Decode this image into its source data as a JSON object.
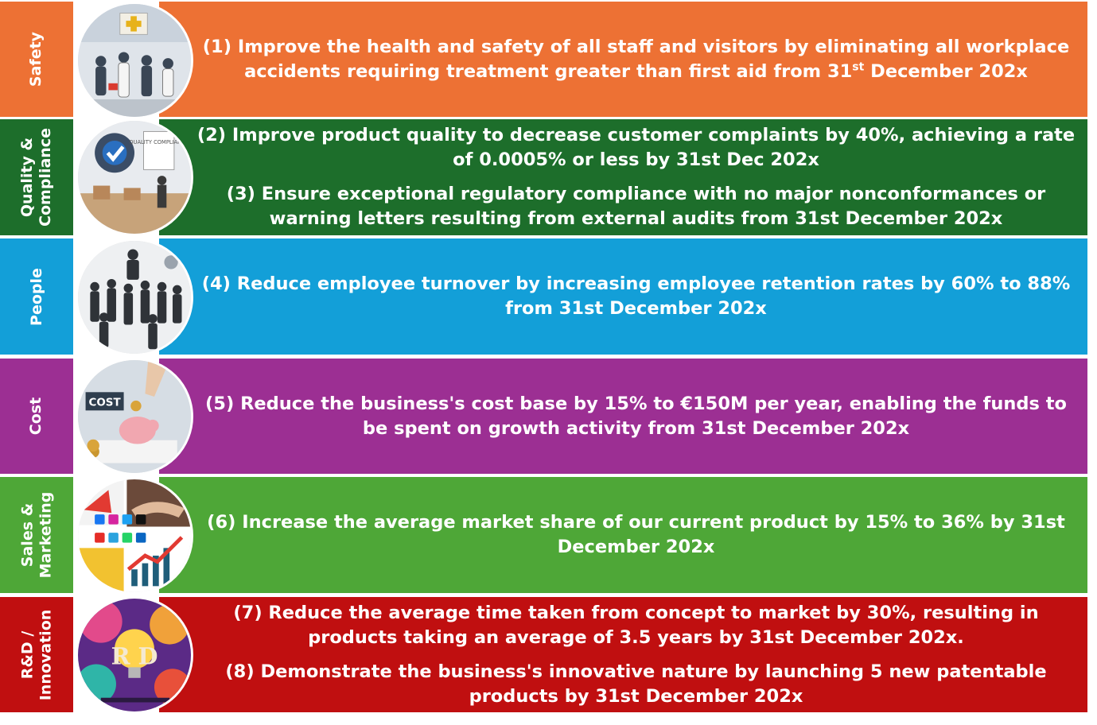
{
  "rows": [
    {
      "label_lines": [
        "Safety"
      ],
      "color": "#ed7134",
      "objectives": [
        {
          "before": "(1) Improve the health and safety of all staff and visitors by eliminating all workplace accidents requiring treatment greater than first aid from 31",
          "sup": "st",
          "after": " December 202x"
        }
      ],
      "illustration_icon": "medical-workplace-illustration"
    },
    {
      "label_lines": [
        "Quality &",
        "Compliance"
      ],
      "color": "#1d6e2b",
      "objectives": [
        {
          "before": "(2) Improve product quality to decrease customer complaints by 40%, achieving a rate of 0.0005% or less by 31st Dec 202x",
          "sup": "",
          "after": ""
        },
        {
          "before": "(3) Ensure exceptional regulatory compliance with no major nonconformances or warning letters resulting from external audits from 31st December 202x",
          "sup": "",
          "after": ""
        }
      ],
      "illustration_icon": "quality-gear-checkmark-illustration",
      "illustration_text": "QUALITY COMPLIANCE"
    },
    {
      "label_lines": [
        "People"
      ],
      "color": "#139fd8",
      "objectives": [
        {
          "before": "(4) Reduce employee turnover by increasing employee retention rates by 60% to 88% from 31st December 202x",
          "sup": "",
          "after": ""
        }
      ],
      "illustration_icon": "team-crowd-illustration"
    },
    {
      "label_lines": [
        "Cost"
      ],
      "color": "#9c2f93",
      "objectives": [
        {
          "before": "(5) Reduce the business's cost base by 15% to €150M per year, enabling the funds to be spent on growth activity from 31st December 202x",
          "sup": "",
          "after": ""
        }
      ],
      "illustration_icon": "piggy-bank-coin-illustration",
      "illustration_text": "COST"
    },
    {
      "label_lines": [
        "Sales &",
        "Marketing"
      ],
      "color": "#4ea737",
      "objectives": [
        {
          "before": "(6) Increase the average market share of our current product by 15% to 36% by 31st December 202x",
          "sup": "",
          "after": ""
        }
      ],
      "illustration_icon": "handshake-social-growth-illustration"
    },
    {
      "label_lines": [
        "R&D /",
        "Innovation"
      ],
      "color": "#c00f10",
      "objectives": [
        {
          "before": "(7) Reduce the average time taken from concept to market by 30%, resulting in products taking an average of 3.5 years by 31st December 202x.",
          "sup": "",
          "after": ""
        },
        {
          "before": "(8) Demonstrate the business's innovative nature by launching 5 new patentable products by 31st December 202x",
          "sup": "",
          "after": ""
        }
      ],
      "illustration_icon": "lightbulb-innovation-illustration",
      "illustration_text": "R D"
    }
  ]
}
